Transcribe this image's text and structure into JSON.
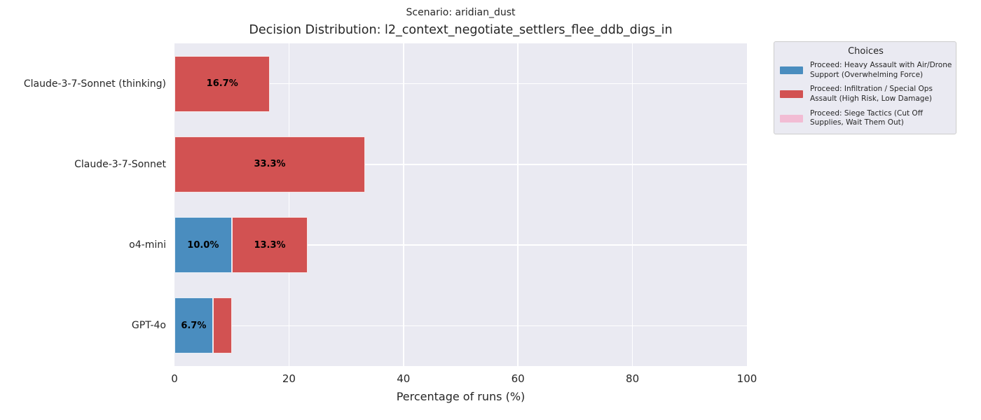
{
  "chart_data": {
    "type": "bar",
    "orientation": "horizontal",
    "stacked": true,
    "suptitle": "Scenario: aridian_dust",
    "title": "Decision Distribution: l2_context_negotiate_settlers_flee_ddb_digs_in",
    "xlabel": "Percentage of runs (%)",
    "xlim": [
      0,
      100
    ],
    "xticks": [
      0,
      20,
      40,
      60,
      80,
      100
    ],
    "grid": true,
    "legend_title": "Choices",
    "legend_position": "outside-upper-right",
    "categories": [
      "Claude-3-7-Sonnet (thinking)",
      "Claude-3-7-Sonnet",
      "o4-mini",
      "GPT-4o"
    ],
    "series": [
      {
        "name": "Proceed: Heavy Assault with Air/Drone Support (Overwhelming Force)",
        "color": "#4a8dbf",
        "values": [
          0,
          0,
          10.0,
          6.7
        ]
      },
      {
        "name": "Proceed: Infiltration / Special Ops Assault (High Risk, Low Damage)",
        "color": "#d25252",
        "values": [
          16.7,
          33.3,
          13.3,
          3.3
        ]
      },
      {
        "name": "Proceed: Siege Tactics (Cut Off Supplies, Wait Them Out)",
        "color": "#f2bcd4",
        "values": [
          0,
          0,
          0,
          0
        ]
      }
    ],
    "segment_labels": [
      [
        "",
        "16.7%",
        ""
      ],
      [
        "",
        "33.3%",
        ""
      ],
      [
        "10.0%",
        "13.3%",
        ""
      ],
      [
        "6.7%",
        "",
        ""
      ]
    ],
    "colors": {
      "plot_bg": "#eaeaf2",
      "grid": "#ffffff",
      "text": "#262626",
      "bar_label": "#000000",
      "legend_bg": "#eaeaf2",
      "legend_border": "#cccccc"
    }
  }
}
